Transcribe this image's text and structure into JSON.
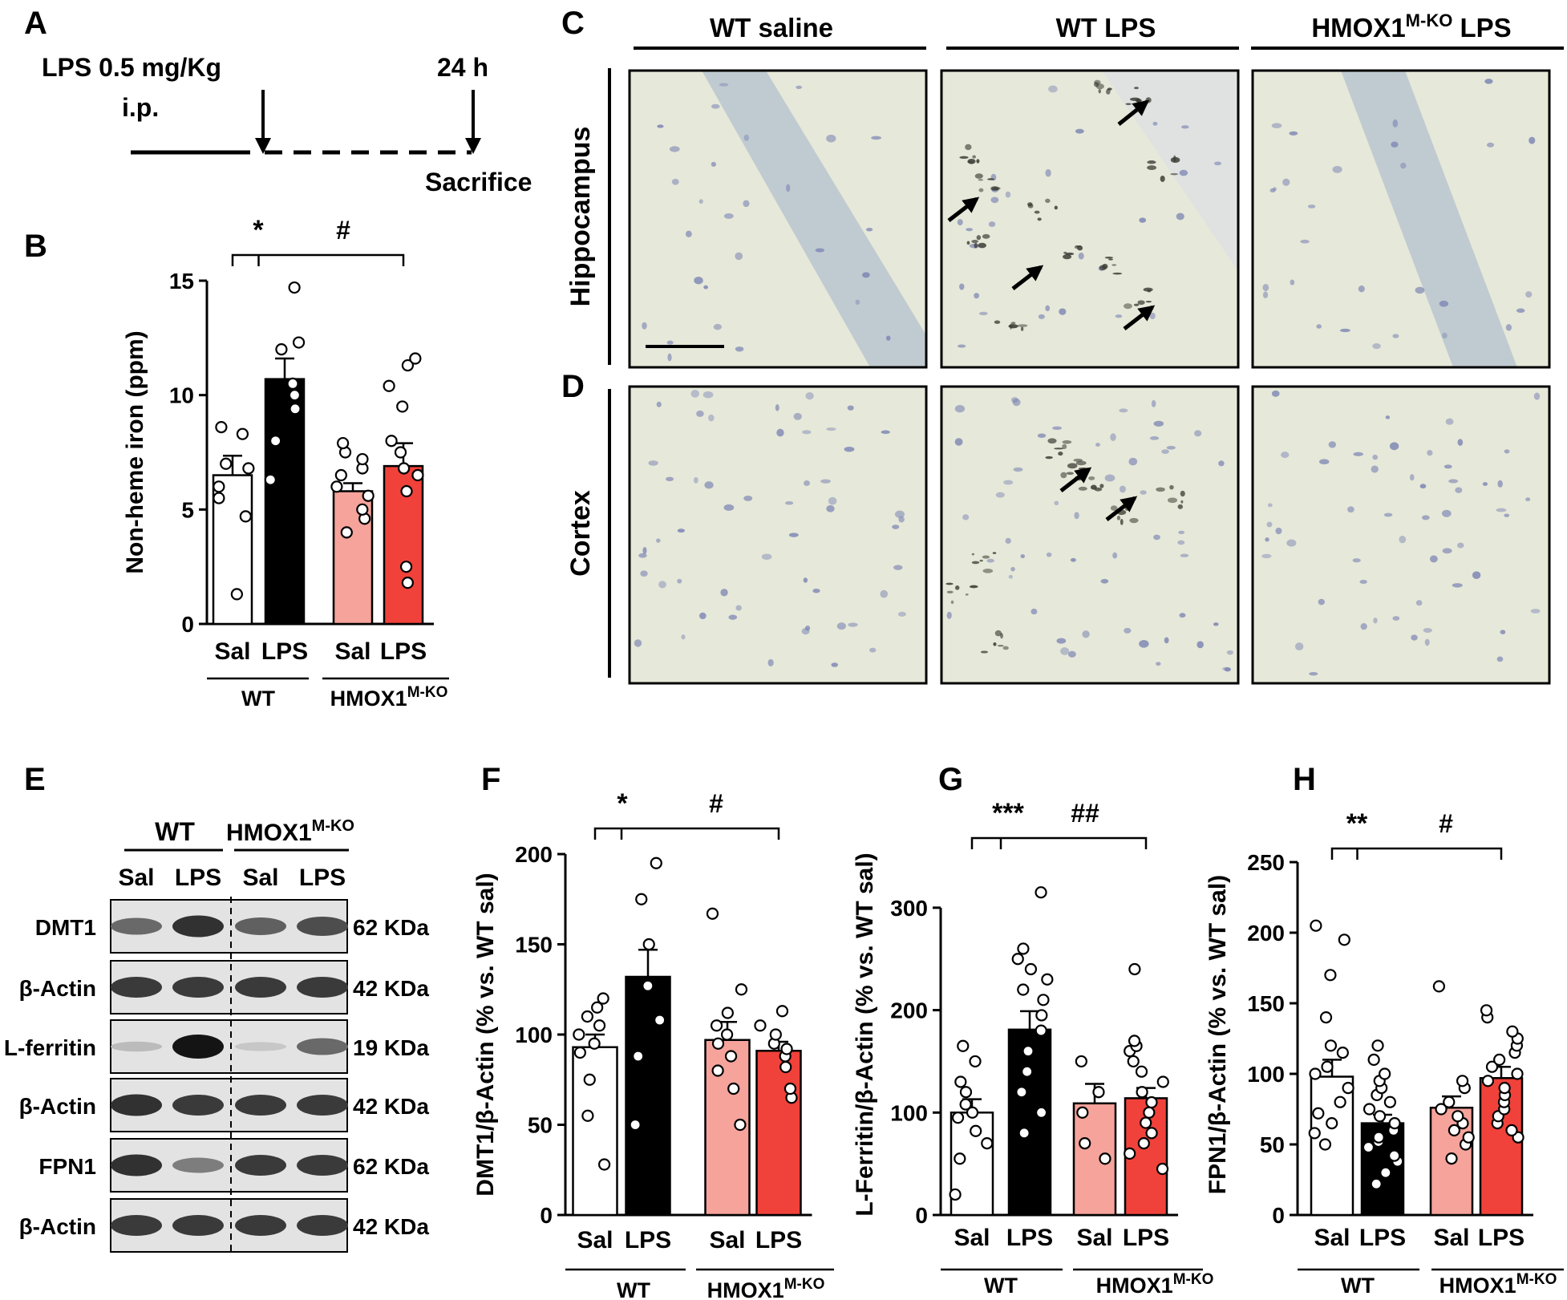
{
  "colors": {
    "wt_sal": "#ffffff",
    "wt_lps": "#000000",
    "ko_sal": "#f5a39b",
    "ko_lps": "#f0423a",
    "tissue": "#e6e8d9"
  },
  "panel_letters": {
    "A": "A",
    "B": "B",
    "C": "C",
    "D": "D",
    "E": "E",
    "F": "F",
    "G": "G",
    "H": "H"
  },
  "panelA": {
    "dose": "LPS 0.5 mg/Kg",
    "route": "i.p.",
    "time": "24 h",
    "endpoint": "Sacrifice"
  },
  "groups": {
    "sal": "Sal",
    "lps": "LPS",
    "wt": "WT",
    "ko_base": "HMOX1",
    "ko_sup": "M-KO",
    "sig_star1": "*",
    "sig_hash1": "#",
    "sig_star2": "**",
    "sig_star3": "***",
    "sig_hash2": "##"
  },
  "micro": {
    "col_wt_saline": "WT saline",
    "col_wt_lps": "WT LPS",
    "col_ko_base": "HMOX1",
    "col_ko_sup": "M-KO",
    "col_ko_lps": " LPS",
    "row_hippocampus": "Hippocampus",
    "row_cortex": "Cortex"
  },
  "blot": {
    "rows": [
      {
        "label": "DMT1",
        "kda": "62 KDa",
        "intensity": [
          0.55,
          0.85,
          0.6,
          0.7
        ]
      },
      {
        "label": "β-Actin",
        "kda": "42 KDa",
        "intensity": [
          0.8,
          0.8,
          0.8,
          0.8
        ]
      },
      {
        "label": "L-ferritin",
        "kda": "19 KDa",
        "intensity": [
          0.12,
          1.0,
          0.06,
          0.55
        ]
      },
      {
        "label": "β-Actin",
        "kda": "42 KDa",
        "intensity": [
          0.85,
          0.8,
          0.8,
          0.8
        ]
      },
      {
        "label": "FPN1",
        "kda": "62 KDa",
        "intensity": [
          0.85,
          0.45,
          0.8,
          0.8
        ]
      },
      {
        "label": "β-Actin",
        "kda": "42 KDa",
        "intensity": [
          0.8,
          0.8,
          0.8,
          0.8
        ]
      }
    ]
  },
  "chart_data": [
    {
      "id": "B",
      "type": "bar",
      "categories": [
        "Sal",
        "LPS",
        "Sal",
        "LPS"
      ],
      "ylabel": "Non-heme iron (ppm)",
      "ylim": [
        0,
        15
      ],
      "yticks": [
        "0",
        "5",
        "10",
        "15"
      ],
      "values": [
        6.5,
        10.7,
        5.8,
        6.9
      ],
      "errors": [
        0.85,
        0.9,
        0.35,
        1.0
      ],
      "points": [
        [
          1.3,
          4.7,
          5.5,
          6.0,
          6.8,
          7.0,
          8.3,
          8.6
        ],
        [
          6.3,
          8.0,
          9.4,
          10.0,
          10.5,
          12.0,
          12.3,
          14.7
        ],
        [
          4.0,
          4.6,
          5.0,
          5.6,
          6.0,
          6.5,
          6.8,
          7.2,
          7.5,
          7.9
        ],
        [
          1.8,
          2.5,
          5.8,
          6.5,
          6.8,
          7.5,
          8.0,
          9.5,
          10.4,
          11.3,
          11.6
        ]
      ]
    },
    {
      "id": "F",
      "type": "bar",
      "categories": [
        "Sal",
        "LPS",
        "Sal",
        "LPS"
      ],
      "ylabel": "DMT1/β-Actin (% vs. WT sal)",
      "ylim": [
        0,
        200
      ],
      "yticks": [
        "0",
        "50",
        "100",
        "150",
        "200"
      ],
      "values": [
        93,
        132,
        97,
        91
      ],
      "errors": [
        7,
        15,
        10,
        5
      ],
      "points": [
        [
          28,
          55,
          75,
          90,
          95,
          100,
          105,
          110,
          115,
          120
        ],
        [
          50,
          88,
          108,
          127,
          150,
          175,
          195
        ],
        [
          50,
          70,
          80,
          88,
          95,
          100,
          105,
          112,
          125,
          167
        ],
        [
          65,
          70,
          82,
          88,
          92,
          95,
          100,
          105,
          113
        ]
      ]
    },
    {
      "id": "G",
      "type": "bar",
      "categories": [
        "Sal",
        "LPS",
        "Sal",
        "LPS"
      ],
      "ylabel": "L-Ferritin/β-Actin (% vs. WT sal)",
      "ylim": [
        0,
        350
      ],
      "yticks": [
        "0",
        "100",
        "200",
        "300"
      ],
      "values": [
        100,
        181,
        109,
        114
      ],
      "errors": [
        13,
        18,
        19,
        10
      ],
      "points": [
        [
          20,
          55,
          70,
          82,
          95,
          100,
          108,
          120,
          130,
          150,
          165
        ],
        [
          80,
          100,
          120,
          140,
          160,
          180,
          195,
          210,
          220,
          230,
          240,
          250,
          260,
          315
        ],
        [
          55,
          70,
          100,
          120,
          150
        ],
        [
          45,
          60,
          70,
          80,
          90,
          100,
          110,
          120,
          130,
          140,
          150,
          160,
          165,
          170,
          240
        ]
      ]
    },
    {
      "id": "H",
      "type": "bar",
      "categories": [
        "Sal",
        "LPS",
        "Sal",
        "LPS"
      ],
      "ylabel": "FPN1/β-Actin (% vs. WT sal)",
      "ylim": [
        0,
        250
      ],
      "yticks": [
        "0",
        "50",
        "100",
        "150",
        "200",
        "250"
      ],
      "values": [
        98,
        65,
        76,
        97
      ],
      "errors": [
        12,
        6,
        8,
        8
      ],
      "points": [
        [
          50,
          58,
          65,
          72,
          80,
          90,
          100,
          105,
          115,
          120,
          140,
          170,
          195,
          205
        ],
        [
          22,
          30,
          38,
          42,
          48,
          52,
          55,
          60,
          65,
          70,
          75,
          80,
          85,
          90,
          95,
          100,
          110,
          120
        ],
        [
          40,
          50,
          55,
          60,
          65,
          70,
          75,
          80,
          90,
          95,
          162
        ],
        [
          55,
          60,
          65,
          70,
          75,
          80,
          85,
          90,
          95,
          100,
          105,
          110,
          115,
          120,
          125,
          130,
          140,
          145
        ]
      ]
    }
  ]
}
